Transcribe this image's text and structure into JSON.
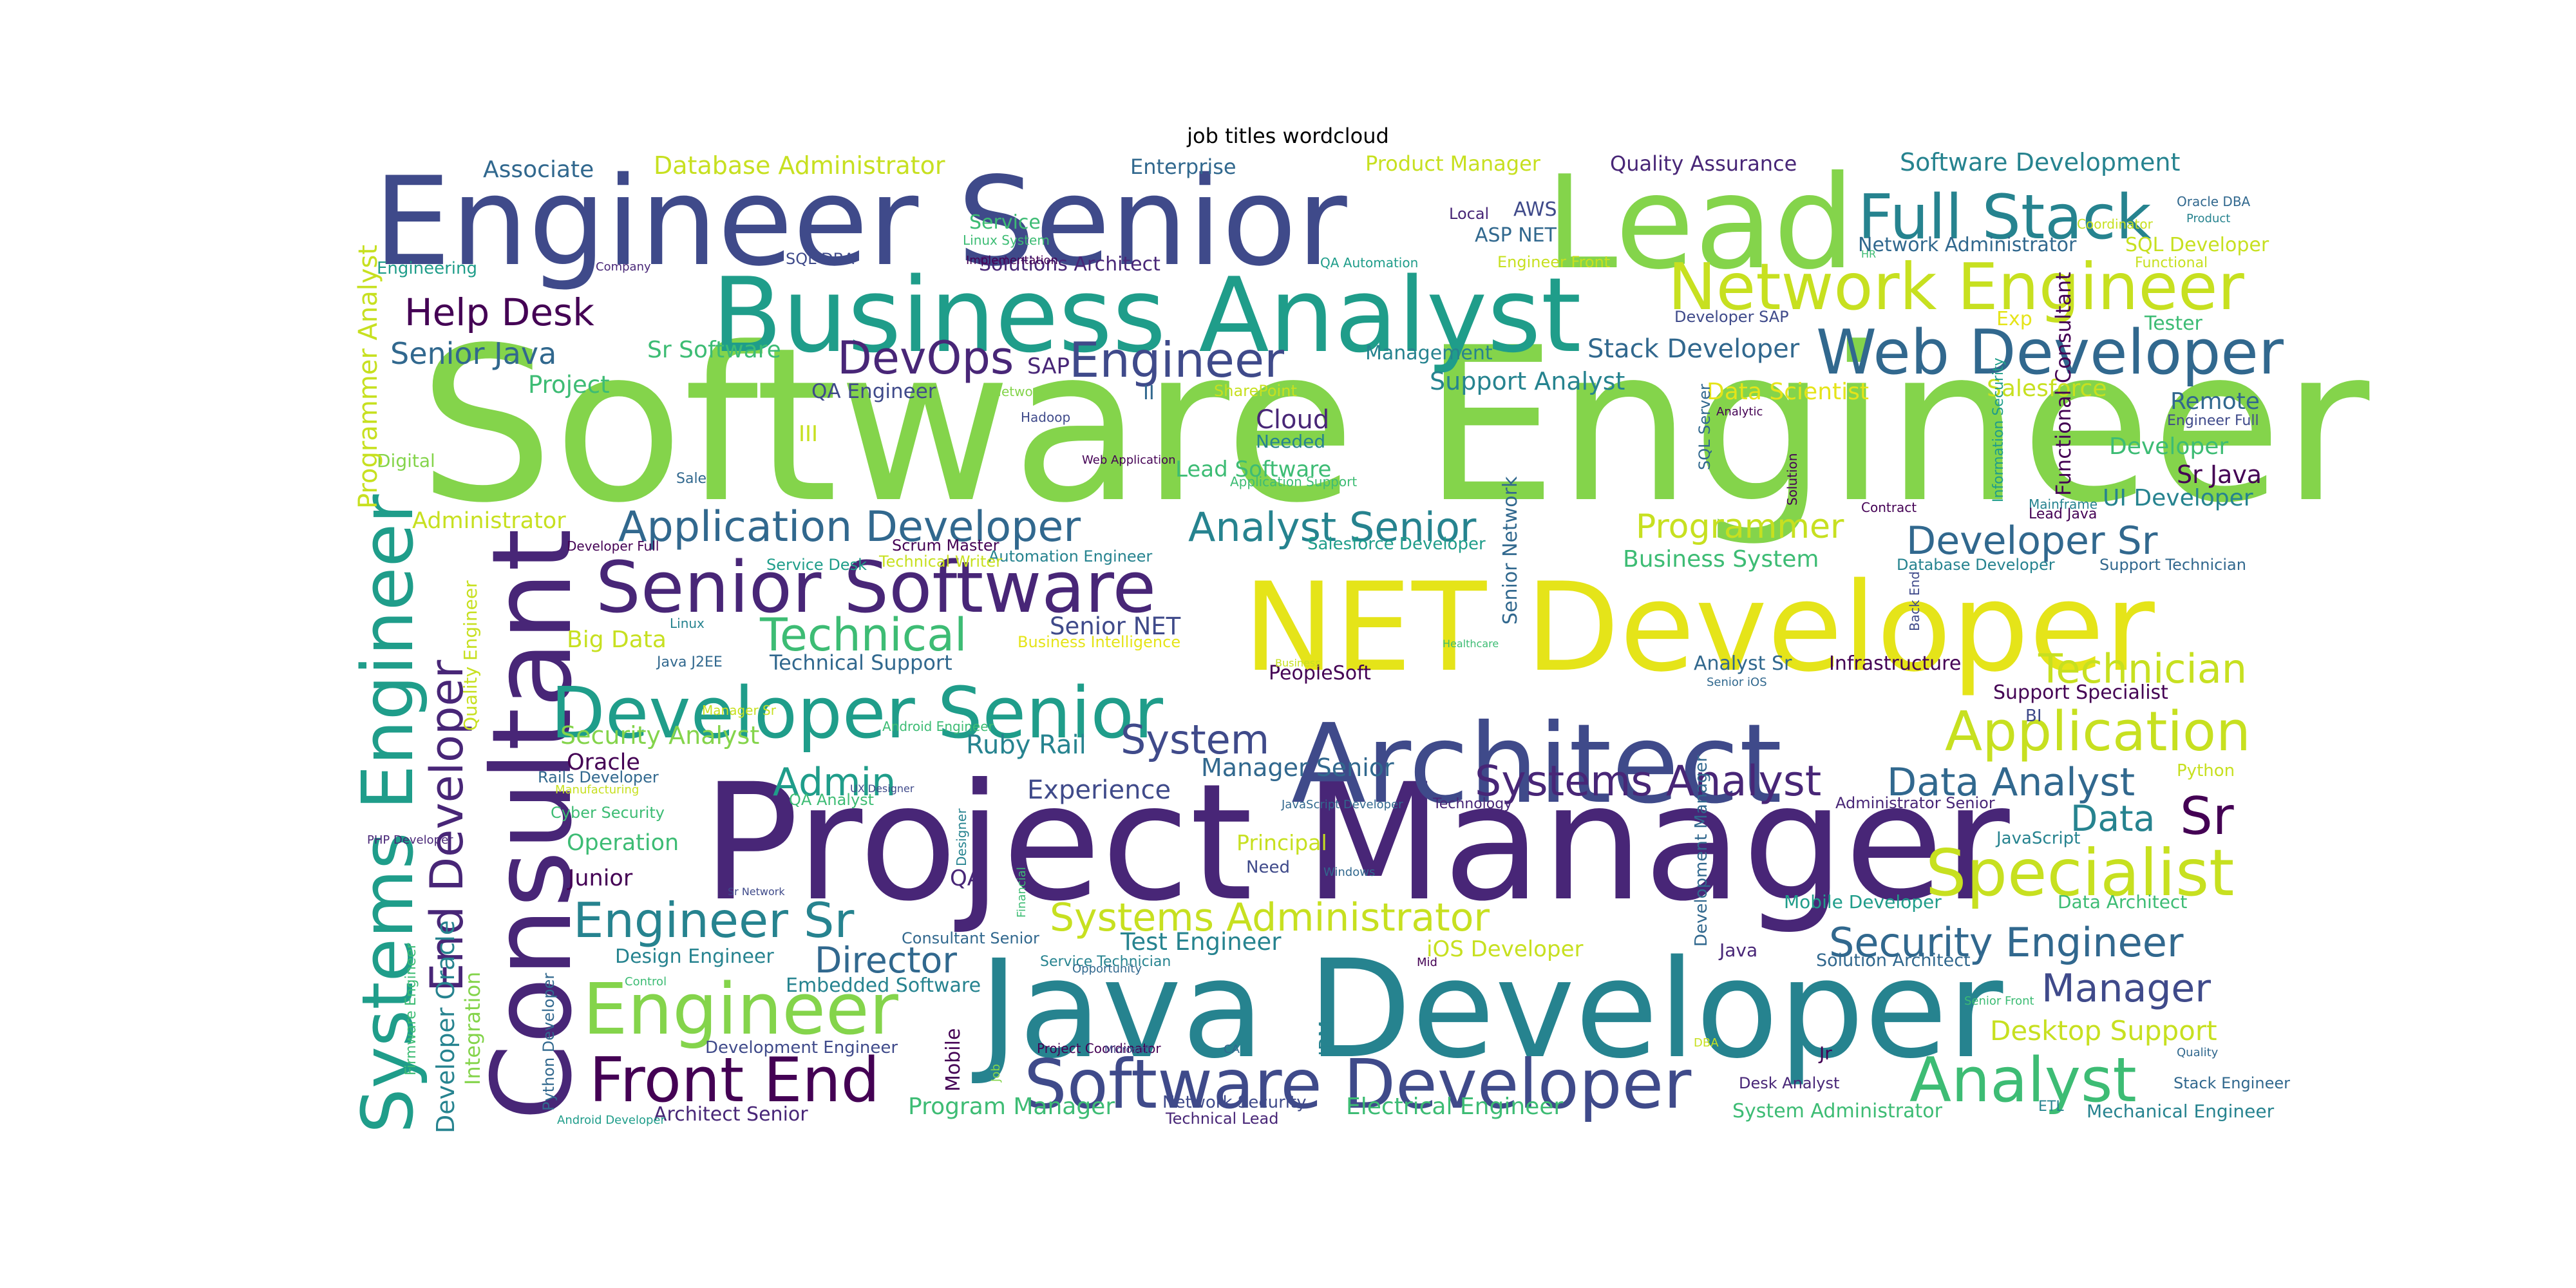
{
  "title": "job titles wordcloud",
  "palette": [
    "#440154",
    "#482677",
    "#3f4a8a",
    "#31688e",
    "#26838f",
    "#1f9d8a",
    "#3dbc74",
    "#84d44b",
    "#c7e020",
    "#e5e419"
  ],
  "words": [
    {
      "text": "Software Engineer",
      "size": 1.0,
      "color": "#84d44b"
    },
    {
      "text": "Project Manager",
      "size": 0.9,
      "color": "#482677"
    },
    {
      "text": "Java Developer",
      "size": 0.84,
      "color": "#26838f"
    },
    {
      "text": "NET Developer",
      "size": 0.8,
      "color": "#e5e419"
    },
    {
      "text": "Architect",
      "size": 0.76,
      "color": "#3f4a8a"
    },
    {
      "text": "Engineer Senior",
      "size": 0.72,
      "color": "#3f4a8a"
    },
    {
      "text": "Lead",
      "size": 0.72,
      "color": "#84d44b"
    },
    {
      "text": "Consultant",
      "size": 0.7,
      "color": "#482677"
    },
    {
      "text": "Business Analyst",
      "size": 0.64,
      "color": "#1f9d8a"
    },
    {
      "text": "Systems Engineer",
      "size": 0.46,
      "color": "#1f9d8a"
    },
    {
      "text": "Senior Software",
      "size": 0.42,
      "color": "#482677"
    },
    {
      "text": "Developer Senior",
      "size": 0.42,
      "color": "#1f9d8a"
    },
    {
      "text": "Software Developer",
      "size": 0.42,
      "color": "#3f4a8a"
    },
    {
      "text": "Network Engineer",
      "size": 0.4,
      "color": "#c7e020"
    },
    {
      "text": "Engineer",
      "size": 0.4,
      "color": "#84d44b"
    },
    {
      "text": "Specialist",
      "size": 0.38,
      "color": "#c7e020"
    },
    {
      "text": "Full Stack",
      "size": 0.36,
      "color": "#26838f"
    },
    {
      "text": "Analyst",
      "size": 0.36,
      "color": "#3dbc74"
    },
    {
      "text": "Web Developer",
      "size": 0.34,
      "color": "#31688e"
    },
    {
      "text": "Front End",
      "size": 0.34,
      "color": "#440154"
    },
    {
      "text": "Application",
      "size": 0.32,
      "color": "#c7e020"
    },
    {
      "text": "End Developer",
      "size": 0.3,
      "color": "#482677"
    },
    {
      "text": "Sr",
      "size": 0.3,
      "color": "#440154"
    },
    {
      "text": "Engineer Sr",
      "size": 0.3,
      "color": "#26838f"
    },
    {
      "text": "DevOps",
      "size": 0.28,
      "color": "#482677"
    },
    {
      "text": "Engineer",
      "size": 0.28,
      "color": "#3f4a8a"
    },
    {
      "text": "Application Developer",
      "size": 0.28,
      "color": "#31688e"
    },
    {
      "text": "Technical",
      "size": 0.28,
      "color": "#3dbc74"
    },
    {
      "text": "Systems Analyst",
      "size": 0.28,
      "color": "#482677"
    },
    {
      "text": "Data Analyst",
      "size": 0.26,
      "color": "#31688e"
    },
    {
      "text": "Security Engineer",
      "size": 0.26,
      "color": "#31688e"
    },
    {
      "text": "Systems Administrator",
      "size": 0.26,
      "color": "#c7e020"
    },
    {
      "text": "Developer Sr",
      "size": 0.26,
      "color": "#31688e"
    },
    {
      "text": "Technician",
      "size": 0.26,
      "color": "#c7e020"
    },
    {
      "text": "Analyst Senior",
      "size": 0.26,
      "color": "#26838f"
    },
    {
      "text": "System",
      "size": 0.26,
      "color": "#3f4a8a"
    },
    {
      "text": "Admin",
      "size": 0.26,
      "color": "#1f9d8a"
    },
    {
      "text": "Director",
      "size": 0.24,
      "color": "#31688e"
    },
    {
      "text": "Manager",
      "size": 0.24,
      "color": "#3f4a8a"
    },
    {
      "text": "Help Desk",
      "size": 0.24,
      "color": "#440154"
    },
    {
      "text": "Programmer",
      "size": 0.24,
      "color": "#c7e020"
    },
    {
      "text": "Data",
      "size": 0.24,
      "color": "#26838f"
    },
    {
      "text": "Desktop Support",
      "size": 0.2,
      "color": "#c7e020"
    },
    {
      "text": "Senior Java",
      "size": 0.2,
      "color": "#31688e"
    },
    {
      "text": "Stack Developer",
      "size": 0.18,
      "color": "#31688e"
    },
    {
      "text": "Ruby Rail",
      "size": 0.18,
      "color": "#26838f"
    },
    {
      "text": "Experience",
      "size": 0.18,
      "color": "#3f4a8a"
    },
    {
      "text": "Manager Senior",
      "size": 0.18,
      "color": "#31688e"
    },
    {
      "text": "Test Engineer",
      "size": 0.17,
      "color": "#26838f"
    },
    {
      "text": "Security Analyst",
      "size": 0.17,
      "color": "#84d44b"
    },
    {
      "text": "Technical Support",
      "size": 0.17,
      "color": "#31688e"
    },
    {
      "text": "Sr Java",
      "size": 0.17,
      "color": "#440154"
    },
    {
      "text": "Big Data",
      "size": 0.17,
      "color": "#c7e020"
    },
    {
      "text": "Senior NET",
      "size": 0.17,
      "color": "#3f4a8a"
    },
    {
      "text": "Oracle",
      "size": 0.17,
      "color": "#440154"
    },
    {
      "text": "Junior",
      "size": 0.17,
      "color": "#440154"
    },
    {
      "text": "Operation",
      "size": 0.17,
      "color": "#3dbc74"
    },
    {
      "text": "Support Analyst",
      "size": 0.17,
      "color": "#26838f"
    },
    {
      "text": "Business System",
      "size": 0.17,
      "color": "#3dbc74"
    },
    {
      "text": "Cloud",
      "size": 0.17,
      "color": "#482677"
    },
    {
      "text": "Database Administrator",
      "size": 0.16,
      "color": "#c7e020"
    },
    {
      "text": "Software Development",
      "size": 0.16,
      "color": "#26838f"
    },
    {
      "text": "Associate",
      "size": 0.16,
      "color": "#31688e"
    },
    {
      "text": "Quality Assurance",
      "size": 0.15,
      "color": "#482677"
    },
    {
      "text": "Product Manager",
      "size": 0.15,
      "color": "#c7e020"
    },
    {
      "text": "Enterprise",
      "size": 0.15,
      "color": "#31688e"
    },
    {
      "text": "Sr Software",
      "size": 0.15,
      "color": "#3dbc74"
    },
    {
      "text": "Project",
      "size": 0.15,
      "color": "#3dbc74"
    },
    {
      "text": "Data Scientist",
      "size": 0.15,
      "color": "#e5e419"
    },
    {
      "text": "Salesforce",
      "size": 0.15,
      "color": "#c7e020"
    },
    {
      "text": "Remote",
      "size": 0.15,
      "color": "#31688e"
    },
    {
      "text": "Developer",
      "size": 0.15,
      "color": "#3dbc74"
    },
    {
      "text": "UI Developer",
      "size": 0.15,
      "color": "#26838f"
    },
    {
      "text": "Lead Software",
      "size": 0.15,
      "color": "#3dbc74"
    },
    {
      "text": "iOS Developer",
      "size": 0.15,
      "color": "#c7e020"
    },
    {
      "text": "Electrical Engineer",
      "size": 0.15,
      "color": "#3dbc74"
    },
    {
      "text": "Program Manager",
      "size": 0.15,
      "color": "#3dbc74"
    },
    {
      "text": "Administrator",
      "size": 0.15,
      "color": "#c7e020"
    },
    {
      "text": "Embedded Software",
      "size": 0.14,
      "color": "#26838f"
    },
    {
      "text": "Principal",
      "size": 0.14,
      "color": "#c7e020"
    },
    {
      "text": "QA Engineer",
      "size": 0.14,
      "color": "#3f4a8a"
    },
    {
      "text": "Management",
      "size": 0.13,
      "color": "#26838f"
    },
    {
      "text": "Design Engineer",
      "size": 0.13,
      "color": "#26838f"
    },
    {
      "text": "Architect Senior",
      "size": 0.13,
      "color": "#482677"
    },
    {
      "text": "Analyst Sr",
      "size": 0.13,
      "color": "#31688e"
    },
    {
      "text": "Infrastructure",
      "size": 0.13,
      "color": "#440154"
    },
    {
      "text": "Support Specialist",
      "size": 0.13,
      "color": "#440154"
    },
    {
      "text": "Solution Architect",
      "size": 0.12,
      "color": "#31688e"
    },
    {
      "text": "System Administrator",
      "size": 0.12,
      "color": "#3dbc74"
    },
    {
      "text": "Mechanical Engineer",
      "size": 0.12,
      "color": "#26838f"
    },
    {
      "text": "Mobile Developer",
      "size": 0.12,
      "color": "#1f9d8a"
    },
    {
      "text": "Data Architect",
      "size": 0.12,
      "color": "#3dbc74"
    },
    {
      "text": "Network Administrator",
      "size": 0.12,
      "color": "#31688e"
    },
    {
      "text": "SQL Developer",
      "size": 0.12,
      "color": "#c7e020"
    },
    {
      "text": "Solutions Architect",
      "size": 0.12,
      "color": "#482677"
    },
    {
      "text": "Service",
      "size": 0.12,
      "color": "#3dbc74"
    },
    {
      "text": "AWS",
      "size": 0.12,
      "color": "#3f4a8a"
    },
    {
      "text": "ASP NET",
      "size": 0.12,
      "color": "#31688e"
    },
    {
      "text": "Local",
      "size": 0.1,
      "color": "#482677"
    },
    {
      "text": "Tester",
      "size": 0.12,
      "color": "#3dbc74"
    },
    {
      "text": "Exp",
      "size": 0.12,
      "color": "#e5e419"
    },
    {
      "text": "Needed",
      "size": 0.12,
      "color": "#26838f"
    },
    {
      "text": "PeopleSoft",
      "size": 0.12,
      "color": "#440154"
    },
    {
      "text": "Python Developer",
      "size": 0.1,
      "color": "#31688e"
    },
    {
      "text": "Development Engineer",
      "size": 0.1,
      "color": "#3f4a8a"
    },
    {
      "text": "Consultant Senior",
      "size": 0.1,
      "color": "#31688e"
    },
    {
      "text": "Cyber Security",
      "size": 0.1,
      "color": "#3dbc74"
    },
    {
      "text": "Rails Developer",
      "size": 0.1,
      "color": "#31688e"
    },
    {
      "text": "Automation Engineer",
      "size": 0.1,
      "color": "#26838f"
    },
    {
      "text": "Scrum Master",
      "size": 0.1,
      "color": "#440154"
    },
    {
      "text": "Salesforce Developer",
      "size": 0.1,
      "color": "#1f9d8a"
    },
    {
      "text": "Developer SAP",
      "size": 0.1,
      "color": "#3f4a8a"
    },
    {
      "text": "Desk Analyst",
      "size": 0.1,
      "color": "#482677"
    },
    {
      "text": "Stack Engineer",
      "size": 0.1,
      "color": "#31688e"
    },
    {
      "text": "Network Security",
      "size": 0.1,
      "color": "#3f4a8a"
    },
    {
      "text": "Technical Lead",
      "size": 0.1,
      "color": "#482677"
    },
    {
      "text": "Need",
      "size": 0.1,
      "color": "#3f4a8a"
    },
    {
      "text": "Administrator Senior",
      "size": 0.1,
      "color": "#482677"
    },
    {
      "text": "Database Developer",
      "size": 0.09,
      "color": "#26838f"
    },
    {
      "text": "Support Technician",
      "size": 0.09,
      "color": "#31688e"
    },
    {
      "text": "JavaScript",
      "size": 0.1,
      "color": "#26838f"
    },
    {
      "text": "Python",
      "size": 0.1,
      "color": "#c7e020"
    },
    {
      "text": "Java",
      "size": 0.1,
      "color": "#482677"
    },
    {
      "text": "Jr",
      "size": 0.1,
      "color": "#440154"
    },
    {
      "text": "SAP",
      "size": 0.12,
      "color": "#482677"
    },
    {
      "text": "II",
      "size": 0.12,
      "color": "#31688e"
    },
    {
      "text": "III",
      "size": 0.12,
      "color": "#c7e020"
    },
    {
      "text": "QA",
      "size": 0.12,
      "color": "#482677"
    },
    {
      "text": "BI",
      "size": 0.1,
      "color": "#3f4a8a"
    },
    {
      "text": "Engineering",
      "size": 0.1,
      "color": "#1f9d8a"
    },
    {
      "text": "Digital",
      "size": 0.1,
      "color": "#84d44b"
    },
    {
      "text": "SharePoint",
      "size": 0.09,
      "color": "#c7e020"
    },
    {
      "text": "Business Intelligence",
      "size": 0.09,
      "color": "#e5e419"
    },
    {
      "text": "Technical Writer",
      "size": 0.09,
      "color": "#c7e020"
    },
    {
      "text": "Service Desk",
      "size": 0.09,
      "color": "#1f9d8a"
    },
    {
      "text": "Engineer Front",
      "size": 0.09,
      "color": "#c7e020"
    },
    {
      "text": "Engineer Full",
      "size": 0.09,
      "color": "#3f4a8a"
    },
    {
      "text": "Coordinator",
      "size": 0.08,
      "color": "#c7e020"
    },
    {
      "text": "SQL Server",
      "size": 0.09,
      "color": "#31688e"
    },
    {
      "text": "SQL DBA",
      "size": 0.08,
      "color": "#3f4a8a"
    },
    {
      "text": "Functional",
      "size": 0.07,
      "color": "#c7e020"
    },
    {
      "text": "Oracle DBA",
      "size": 0.07,
      "color": "#31688e"
    },
    {
      "text": "Product",
      "size": 0.07,
      "color": "#26838f"
    },
    {
      "text": "Linux System",
      "size": 0.07,
      "color": "#3dbc74"
    },
    {
      "text": "Implementation",
      "size": 0.07,
      "color": "#440154"
    },
    {
      "text": "Company",
      "size": 0.06,
      "color": "#482677"
    },
    {
      "text": "QA Automation",
      "size": 0.07,
      "color": "#1f9d8a"
    },
    {
      "text": "HR",
      "size": 0.07,
      "color": "#3dbc74"
    },
    {
      "text": "Network",
      "size": 0.06,
      "color": "#84d44b"
    },
    {
      "text": "Hadoop",
      "size": 0.07,
      "color": "#3f4a8a"
    },
    {
      "text": "Web Application",
      "size": 0.07,
      "color": "#440154"
    },
    {
      "text": "Sale",
      "size": 0.06,
      "color": "#31688e"
    },
    {
      "text": "Application Support",
      "size": 0.07,
      "color": "#3dbc74"
    },
    {
      "text": "Analytic",
      "size": 0.07,
      "color": "#440154"
    },
    {
      "text": "Contract",
      "size": 0.08,
      "color": "#440154"
    },
    {
      "text": "Mainframe",
      "size": 0.07,
      "color": "#26838f"
    },
    {
      "text": "Lead Java",
      "size": 0.07,
      "color": "#440154"
    },
    {
      "text": "Developer Full",
      "size": 0.08,
      "color": "#440154"
    },
    {
      "text": "Linux",
      "size": 0.07,
      "color": "#26838f"
    },
    {
      "text": "Java J2EE",
      "size": 0.07,
      "color": "#31688e"
    },
    {
      "text": "Android Engineer",
      "size": 0.07,
      "color": "#3dbc74"
    },
    {
      "text": "Manager Sr",
      "size": 0.08,
      "color": "#c7e020"
    },
    {
      "text": "Manufacturing",
      "size": 0.06,
      "color": "#c7e020"
    },
    {
      "text": "QA Analyst",
      "size": 0.06,
      "color": "#3dbc74"
    },
    {
      "text": "UX Designer",
      "size": 0.07,
      "color": "#3f4a8a"
    },
    {
      "text": "JavaScript Developer",
      "size": 0.07,
      "color": "#31688e"
    },
    {
      "text": "Technology",
      "size": 0.06,
      "color": "#482677"
    },
    {
      "text": "Senior iOS",
      "size": 0.06,
      "color": "#31688e"
    },
    {
      "text": "Healthcare",
      "size": 0.07,
      "color": "#3dbc74"
    },
    {
      "text": "Business",
      "size": 0.06,
      "color": "#c7e020"
    },
    {
      "text": "Windows",
      "size": 0.08,
      "color": "#31688e"
    },
    {
      "text": "Sr Network",
      "size": 0.07,
      "color": "#3f4a8a"
    },
    {
      "text": "Service Technician",
      "size": 0.07,
      "color": "#26838f"
    },
    {
      "text": "Opportunity",
      "size": 0.07,
      "color": "#31688e"
    },
    {
      "text": "Mid",
      "size": 0.07,
      "color": "#440154"
    },
    {
      "text": "Control",
      "size": 0.07,
      "color": "#3dbc74"
    },
    {
      "text": "Project Coordinator",
      "size": 0.07,
      "color": "#440154"
    },
    {
      "text": "Microsoft",
      "size": 0.07,
      "color": "#3f4a8a"
    },
    {
      "text": "CA",
      "size": 0.07,
      "color": "#31688e"
    },
    {
      "text": "Senior Front",
      "size": 0.07,
      "color": "#3dbc74"
    },
    {
      "text": "DBA",
      "size": 0.08,
      "color": "#c7e020"
    },
    {
      "text": "Quality",
      "size": 0.07,
      "color": "#31688e"
    },
    {
      "text": "ETL",
      "size": 0.07,
      "color": "#26838f"
    },
    {
      "text": "Android Developer",
      "size": 0.14,
      "color": "#1f9d8a"
    },
    {
      "text": "PHP Developer",
      "size": 0.14,
      "color": "#482677"
    },
    {
      "text": "Programmer Analyst",
      "size": 0.11,
      "color": "#c7e020"
    },
    {
      "text": "Developer Oracle",
      "size": 0.08,
      "color": "#26838f"
    },
    {
      "text": "Integration",
      "size": 0.1,
      "color": "#84d44b"
    },
    {
      "text": "Firmware Engineer",
      "size": 0.08,
      "color": "#3dbc74"
    },
    {
      "text": "Quality Engineer",
      "size": 0.07,
      "color": "#c7e020"
    },
    {
      "text": "Designer",
      "size": 0.11,
      "color": "#26838f"
    },
    {
      "text": "Financial",
      "size": 0.07,
      "color": "#3dbc74"
    },
    {
      "text": "Mobile",
      "size": 0.11,
      "color": "#440154"
    },
    {
      "text": "Job",
      "size": 0.1,
      "color": "#84d44b"
    },
    {
      "text": "IBM",
      "size": 0.07,
      "color": "#26838f"
    },
    {
      "text": "Senior Network",
      "size": 0.09,
      "color": "#31688e"
    },
    {
      "text": "Back End",
      "size": 0.07,
      "color": "#3f4a8a"
    },
    {
      "text": "Development Manager",
      "size": 0.07,
      "color": "#31688e"
    },
    {
      "text": "Solution",
      "size": 0.1,
      "color": "#440154"
    },
    {
      "text": "Information Security",
      "size": 0.09,
      "color": "#1f9d8a"
    },
    {
      "text": "Functional Consultant",
      "size": 0.07,
      "color": "#440154"
    }
  ]
}
